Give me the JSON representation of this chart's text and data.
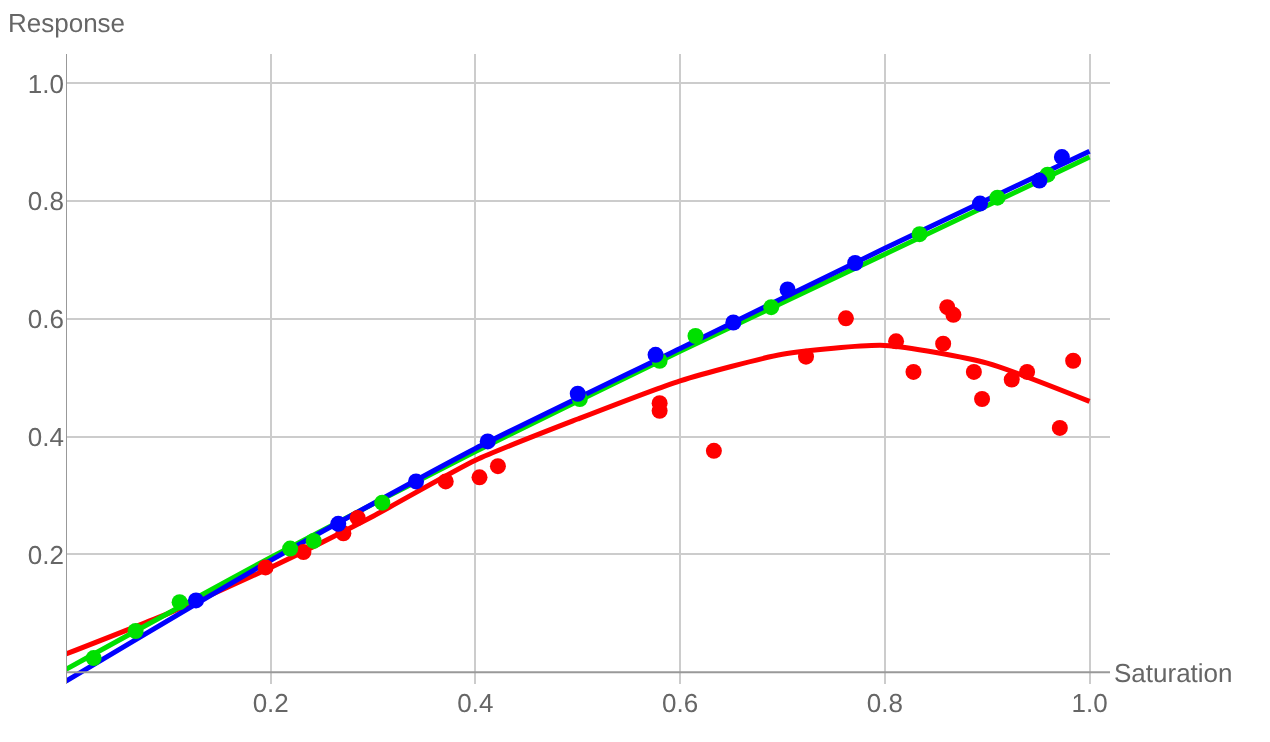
{
  "chart_data": {
    "type": "scatter",
    "xlabel": "Saturation",
    "ylabel": "Response",
    "xlim": [
      0,
      1.02
    ],
    "ylim": [
      -0.02,
      1.05
    ],
    "xticks": [
      0.2,
      0.4,
      0.6,
      0.8,
      {
        "value": 1.0,
        "label": "1.0"
      }
    ],
    "yticks": [
      0.2,
      0.4,
      0.6,
      0.8,
      {
        "value": 1.0,
        "label": "1.0"
      }
    ],
    "grid": true,
    "series": [
      {
        "marker": "circle",
        "color": "#ff0000",
        "x": [
          0.195,
          0.232,
          0.271,
          0.285,
          0.371,
          0.404,
          0.422,
          0.58,
          0.58,
          0.633,
          0.723,
          0.762,
          0.811,
          0.828,
          0.857,
          0.861,
          0.867,
          0.887,
          0.895,
          0.924,
          0.939,
          0.971,
          0.984
        ],
        "values": [
          0.178,
          0.204,
          0.236,
          0.262,
          0.324,
          0.331,
          0.35,
          0.457,
          0.444,
          0.376,
          0.536,
          0.601,
          0.562,
          0.51,
          0.558,
          0.62,
          0.607,
          0.51,
          0.464,
          0.497,
          0.51,
          0.415,
          0.529
        ]
      },
      {
        "marker": "circle",
        "color": "#00e000",
        "x": [
          0.027,
          0.068,
          0.111,
          0.219,
          0.242,
          0.309,
          0.502,
          0.58,
          0.615,
          0.689,
          0.834,
          0.91,
          0.959
        ],
        "values": [
          0.024,
          0.07,
          0.119,
          0.21,
          0.223,
          0.288,
          0.464,
          0.529,
          0.571,
          0.62,
          0.744,
          0.806,
          0.845
        ]
      },
      {
        "marker": "circle",
        "color": "#0000ff",
        "x": [
          0.127,
          0.266,
          0.342,
          0.412,
          0.5,
          0.576,
          0.652,
          0.705,
          0.771,
          0.893,
          0.951,
          0.973
        ],
        "values": [
          0.122,
          0.252,
          0.324,
          0.392,
          0.473,
          0.539,
          0.594,
          0.65,
          0.695,
          0.796,
          0.835,
          0.875
        ]
      },
      {
        "type": "line",
        "color": "#ff0000",
        "x": [
          0,
          0.1,
          0.2,
          0.3,
          0.4,
          0.5,
          0.6,
          0.7,
          0.8,
          0.9,
          1.0
        ],
        "values": [
          0.031,
          0.1,
          0.178,
          0.265,
          0.36,
          0.43,
          0.495,
          0.54,
          0.555,
          0.525,
          0.46
        ]
      },
      {
        "type": "line",
        "color": "#00e000",
        "x": [
          0,
          0.2,
          0.4,
          0.6,
          0.8,
          1.0
        ],
        "values": [
          0.005,
          0.195,
          0.375,
          0.545,
          0.71,
          0.875
        ]
      },
      {
        "type": "line",
        "color": "#0000ff",
        "x": [
          0,
          0.2,
          0.4,
          0.6,
          0.8,
          1.0
        ],
        "values": [
          -0.015,
          0.19,
          0.38,
          0.55,
          0.72,
          0.885
        ]
      }
    ]
  }
}
